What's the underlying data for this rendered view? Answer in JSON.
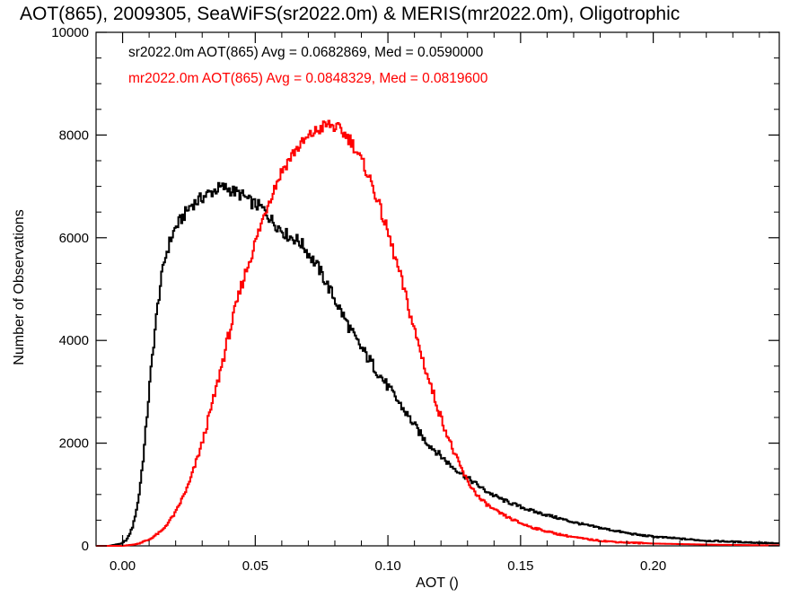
{
  "chart_data": {
    "type": "line",
    "title": "AOT(865), 2009305, SeaWiFS(sr2022.0m) & MERIS(mr2022.0m), Oligotrophic",
    "xlabel": "AOT ()",
    "ylabel": "Number of Observations",
    "xlim": [
      -0.01,
      0.2475
    ],
    "ylim": [
      0,
      10000
    ],
    "x_ticks": [
      0.0,
      0.05,
      0.1,
      0.15,
      0.2
    ],
    "x_tick_labels": [
      "0.00",
      "0.05",
      "0.10",
      "0.15",
      "0.20"
    ],
    "y_ticks": [
      0,
      2000,
      4000,
      6000,
      8000,
      10000
    ],
    "y_tick_labels": [
      "0",
      "2000",
      "4000",
      "6000",
      "8000",
      "10000"
    ],
    "grid": false,
    "step_style": "histogram",
    "annotations": [
      {
        "text": "sr2022.0m AOT(865) Avg = 0.0682869, Med = 0.0590000",
        "color": "#000000"
      },
      {
        "text": "mr2022.0m AOT(865) Avg = 0.0848329, Med = 0.0819600",
        "color": "#ff0000"
      }
    ],
    "series": [
      {
        "color": "#000000",
        "x": [
          -0.01,
          -0.005,
          0.0,
          0.002,
          0.004,
          0.006,
          0.008,
          0.01,
          0.012,
          0.014,
          0.016,
          0.018,
          0.02,
          0.022,
          0.024,
          0.026,
          0.028,
          0.03,
          0.032,
          0.034,
          0.036,
          0.038,
          0.04,
          0.042,
          0.044,
          0.046,
          0.048,
          0.05,
          0.052,
          0.054,
          0.056,
          0.058,
          0.06,
          0.062,
          0.064,
          0.066,
          0.068,
          0.07,
          0.072,
          0.074,
          0.076,
          0.078,
          0.08,
          0.082,
          0.084,
          0.086,
          0.088,
          0.09,
          0.092,
          0.094,
          0.096,
          0.098,
          0.1,
          0.102,
          0.104,
          0.106,
          0.108,
          0.11,
          0.112,
          0.114,
          0.116,
          0.118,
          0.12,
          0.122,
          0.124,
          0.126,
          0.128,
          0.13,
          0.132,
          0.134,
          0.136,
          0.138,
          0.14,
          0.142,
          0.144,
          0.146,
          0.148,
          0.15,
          0.155,
          0.16,
          0.165,
          0.17,
          0.175,
          0.18,
          0.185,
          0.19,
          0.195,
          0.2,
          0.205,
          0.21,
          0.215,
          0.22,
          0.225,
          0.23,
          0.235,
          0.24,
          0.245
        ],
        "y": [
          0,
          0,
          50,
          150,
          400,
          900,
          1800,
          3000,
          4100,
          5000,
          5600,
          5950,
          6200,
          6350,
          6500,
          6650,
          6700,
          6780,
          6850,
          6900,
          6960,
          6980,
          6950,
          6900,
          6850,
          6800,
          6700,
          6650,
          6600,
          6500,
          6350,
          6250,
          6150,
          6050,
          6000,
          5950,
          5850,
          5700,
          5550,
          5400,
          5200,
          5000,
          4800,
          4600,
          4400,
          4200,
          4000,
          3850,
          3700,
          3550,
          3400,
          3250,
          3100,
          2950,
          2800,
          2650,
          2500,
          2350,
          2200,
          2050,
          1950,
          1850,
          1750,
          1650,
          1550,
          1480,
          1400,
          1320,
          1250,
          1180,
          1100,
          1040,
          980,
          930,
          880,
          840,
          800,
          760,
          670,
          600,
          530,
          460,
          400,
          350,
          300,
          250,
          210,
          180,
          160,
          140,
          120,
          100,
          90,
          80,
          70,
          60,
          50
        ]
      },
      {
        "color": "#ff0000",
        "x": [
          -0.01,
          0.0,
          0.005,
          0.01,
          0.015,
          0.02,
          0.025,
          0.03,
          0.035,
          0.04,
          0.045,
          0.05,
          0.055,
          0.06,
          0.065,
          0.07,
          0.072,
          0.074,
          0.076,
          0.078,
          0.08,
          0.082,
          0.084,
          0.086,
          0.088,
          0.09,
          0.092,
          0.095,
          0.1,
          0.105,
          0.11,
          0.115,
          0.12,
          0.125,
          0.13,
          0.135,
          0.14,
          0.145,
          0.15,
          0.155,
          0.16,
          0.165,
          0.17,
          0.175,
          0.18,
          0.185,
          0.19,
          0.195,
          0.2,
          0.205,
          0.21,
          0.215,
          0.22,
          0.225,
          0.23,
          0.235,
          0.24,
          0.245
        ],
        "y": [
          0,
          0,
          30,
          120,
          300,
          650,
          1200,
          2000,
          3000,
          4100,
          5100,
          5900,
          6700,
          7300,
          7700,
          7950,
          8050,
          8100,
          8180,
          8200,
          8150,
          8100,
          8000,
          7900,
          7700,
          7500,
          7300,
          6900,
          6100,
          5200,
          4200,
          3300,
          2500,
          1800,
          1250,
          900,
          700,
          560,
          440,
          350,
          280,
          220,
          170,
          130,
          100,
          80,
          65,
          55,
          45,
          40,
          35,
          30,
          25,
          20,
          18,
          15,
          12,
          10
        ]
      }
    ]
  }
}
